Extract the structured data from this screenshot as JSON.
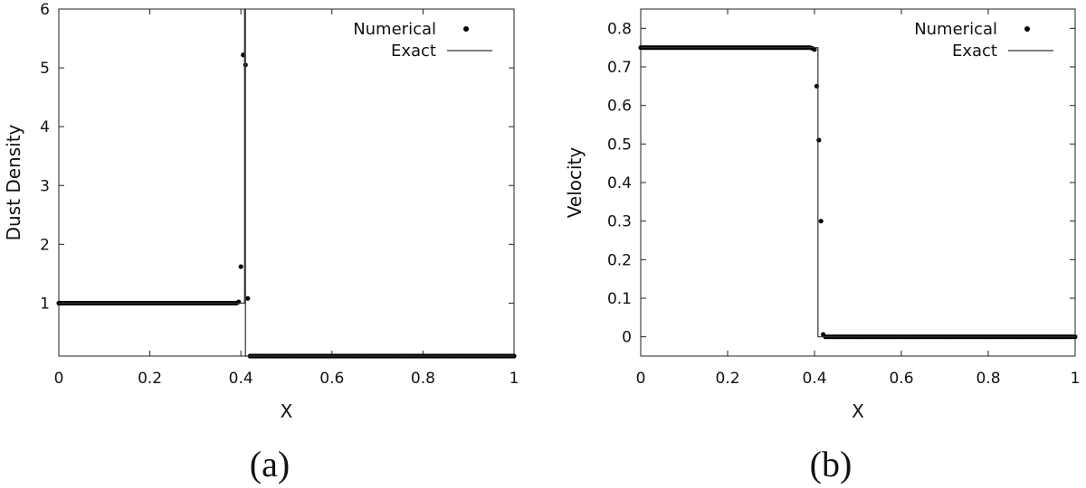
{
  "chart_data": [
    {
      "panel": "(a)",
      "type": "scatter",
      "xlabel": "X",
      "ylabel": "Dust Density",
      "xlim": [
        0,
        1
      ],
      "ylim": [
        0.1,
        6
      ],
      "xticks": [
        "0",
        "0.2",
        "0.4",
        "0.6",
        "0.8",
        "1"
      ],
      "yticks": [
        "1",
        "2",
        "3",
        "4",
        "5",
        "6"
      ],
      "legend_position": "top-right",
      "grid": false,
      "series": [
        {
          "name": "Numerical",
          "style": "points",
          "segments": [
            {
              "x_start": 0.0,
              "x_end": 0.39,
              "count": 100,
              "y": 1.0
            },
            {
              "x_start": 0.42,
              "x_end": 1.0,
              "count": 150,
              "y": 0.1
            }
          ],
          "points": [
            {
              "x": 0.395,
              "y": 1.02
            },
            {
              "x": 0.4,
              "y": 1.62
            },
            {
              "x": 0.405,
              "y": 5.22
            },
            {
              "x": 0.41,
              "y": 5.05
            },
            {
              "x": 0.415,
              "y": 1.08
            }
          ]
        },
        {
          "name": "Exact",
          "style": "line",
          "points": [
            {
              "x": 0.0,
              "y": 1.0
            },
            {
              "x": 0.408,
              "y": 1.0
            },
            {
              "x": 0.408,
              "y": 6.0
            },
            {
              "x": 0.41,
              "y": 6.0
            },
            {
              "x": 0.41,
              "y": 0.1
            },
            {
              "x": 1.0,
              "y": 0.1
            }
          ]
        }
      ]
    },
    {
      "panel": "(b)",
      "type": "scatter",
      "xlabel": "X",
      "ylabel": "Velocity",
      "xlim": [
        0,
        1
      ],
      "ylim": [
        -0.05,
        0.85
      ],
      "xticks": [
        "0",
        "0.2",
        "0.4",
        "0.6",
        "0.8",
        "1"
      ],
      "yticks": [
        "0",
        "0.1",
        "0.2",
        "0.3",
        "0.4",
        "0.5",
        "0.6",
        "0.7",
        "0.8"
      ],
      "legend_position": "top-right",
      "grid": false,
      "series": [
        {
          "name": "Numerical",
          "style": "points",
          "segments": [
            {
              "x_start": 0.0,
              "x_end": 0.39,
              "count": 100,
              "y": 0.75
            },
            {
              "x_start": 0.425,
              "x_end": 1.0,
              "count": 150,
              "y": 0.0
            }
          ],
          "points": [
            {
              "x": 0.395,
              "y": 0.748
            },
            {
              "x": 0.4,
              "y": 0.745
            },
            {
              "x": 0.405,
              "y": 0.65
            },
            {
              "x": 0.41,
              "y": 0.51
            },
            {
              "x": 0.415,
              "y": 0.3
            },
            {
              "x": 0.42,
              "y": 0.006
            }
          ]
        },
        {
          "name": "Exact",
          "style": "line",
          "points": [
            {
              "x": 0.0,
              "y": 0.75
            },
            {
              "x": 0.408,
              "y": 0.75
            },
            {
              "x": 0.408,
              "y": 0.0
            },
            {
              "x": 1.0,
              "y": 0.0
            }
          ]
        }
      ]
    }
  ]
}
